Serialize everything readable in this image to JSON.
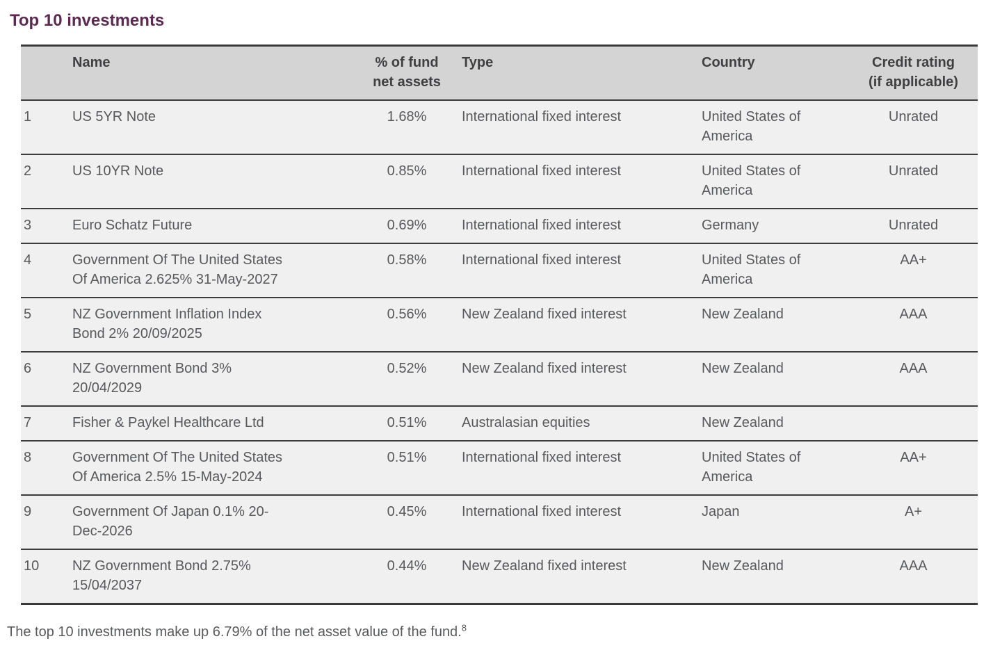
{
  "title": "Top 10 investments",
  "colors": {
    "title_accent": "#5C2A51",
    "header_background": "#D4D4D4",
    "row_background": "#F0F0F1",
    "border": "#3C3C3C",
    "body_text": "#58595B"
  },
  "table": {
    "headers": [
      {
        "label": ""
      },
      {
        "label": "Name"
      },
      {
        "label": "% of fund\nnet assets"
      },
      {
        "label": "Type"
      },
      {
        "label": "Country"
      },
      {
        "label": "Credit rating\n(if applicable)"
      }
    ],
    "rows": [
      {
        "rank": "1",
        "name": "US 5YR Note",
        "pct": "1.68%",
        "type": "International fixed interest",
        "country": "United States of\nAmerica",
        "rating": "Unrated"
      },
      {
        "rank": "2",
        "name": "US 10YR Note",
        "pct": "0.85%",
        "type": "International fixed interest",
        "country": "United States of\nAmerica",
        "rating": "Unrated"
      },
      {
        "rank": "3",
        "name": "Euro Schatz Future",
        "pct": "0.69%",
        "type": "International fixed interest",
        "country": "Germany",
        "rating": "Unrated"
      },
      {
        "rank": "4",
        "name": "Government Of The United States\nOf America 2.625% 31-May-2027",
        "pct": "0.58%",
        "type": "International fixed interest",
        "country": "United States of\nAmerica",
        "rating": "AA+"
      },
      {
        "rank": "5",
        "name": "NZ Government Inflation Index\nBond 2% 20/09/2025",
        "pct": "0.56%",
        "type": "New Zealand fixed interest",
        "country": "New Zealand",
        "rating": "AAA"
      },
      {
        "rank": "6",
        "name": "NZ Government Bond 3%\n20/04/2029",
        "pct": "0.52%",
        "type": "New Zealand fixed interest",
        "country": "New Zealand",
        "rating": "AAA"
      },
      {
        "rank": "7",
        "name": "Fisher & Paykel Healthcare Ltd",
        "pct": "0.51%",
        "type": "Australasian equities",
        "country": "New Zealand",
        "rating": ""
      },
      {
        "rank": "8",
        "name": "Government Of The United States\nOf America 2.5% 15-May-2024",
        "pct": "0.51%",
        "type": "International fixed interest",
        "country": "United States of\nAmerica",
        "rating": "AA+"
      },
      {
        "rank": "9",
        "name": "Government Of Japan 0.1% 20-\nDec-2026",
        "pct": "0.45%",
        "type": "International fixed interest",
        "country": "Japan",
        "rating": "A+"
      },
      {
        "rank": "10",
        "name": "NZ Government Bond 2.75%\n15/04/2037",
        "pct": "0.44%",
        "type": "New Zealand fixed interest",
        "country": "New Zealand",
        "rating": "AAA"
      }
    ]
  },
  "footnote": {
    "text": "The top 10 investments make up 6.79% of the net asset value of the fund.",
    "superscript": "8"
  }
}
